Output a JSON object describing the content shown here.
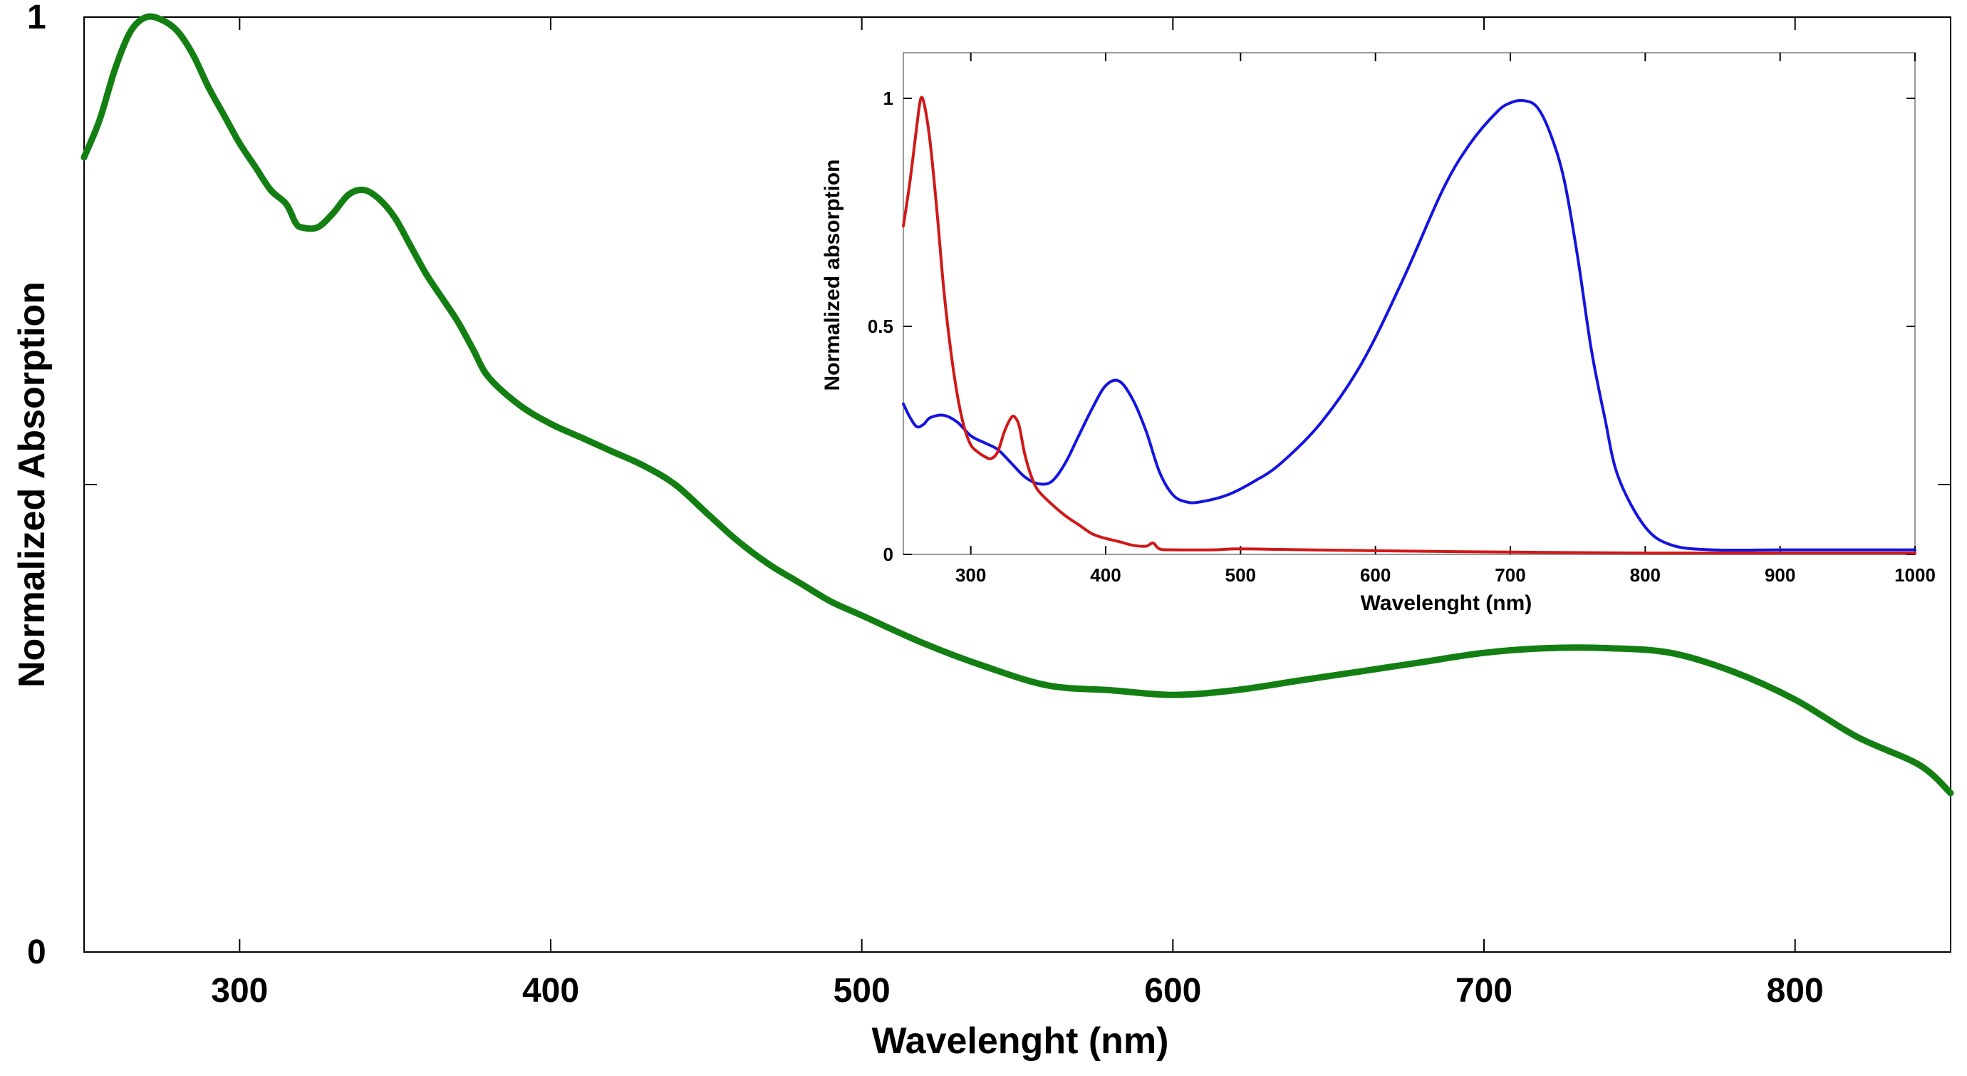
{
  "chart_data": [
    {
      "type": "line",
      "title": "",
      "xlabel": "Wavelenght (nm)",
      "ylabel": "Normalized Absorption",
      "xlim": [
        250,
        850
      ],
      "ylim": [
        0,
        1
      ],
      "xticks": [
        300,
        400,
        500,
        600,
        700,
        800
      ],
      "xtick_labels": [
        "300",
        "400",
        "500",
        "600",
        "700",
        "800"
      ],
      "yticks": [
        0,
        0.5,
        1
      ],
      "ytick_labels": [
        "0",
        "",
        "1"
      ],
      "grid": false,
      "series": [
        {
          "name": "green",
          "color": "#137f13",
          "x": [
            250,
            255,
            260,
            265,
            270,
            275,
            280,
            285,
            290,
            295,
            300,
            305,
            310,
            315,
            318,
            320,
            325,
            330,
            335,
            340,
            345,
            350,
            355,
            360,
            365,
            370,
            375,
            380,
            390,
            400,
            410,
            420,
            430,
            440,
            450,
            460,
            470,
            480,
            490,
            500,
            520,
            540,
            560,
            580,
            600,
            620,
            640,
            660,
            680,
            700,
            720,
            740,
            760,
            780,
            800,
            820,
            840,
            850
          ],
          "y": [
            0.85,
            0.89,
            0.945,
            0.985,
            1.0,
            0.997,
            0.985,
            0.96,
            0.925,
            0.895,
            0.865,
            0.84,
            0.815,
            0.8,
            0.78,
            0.775,
            0.775,
            0.79,
            0.81,
            0.815,
            0.805,
            0.785,
            0.755,
            0.725,
            0.7,
            0.675,
            0.645,
            0.615,
            0.585,
            0.565,
            0.55,
            0.535,
            0.52,
            0.5,
            0.47,
            0.44,
            0.415,
            0.395,
            0.375,
            0.36,
            0.33,
            0.305,
            0.285,
            0.28,
            0.275,
            0.28,
            0.29,
            0.3,
            0.31,
            0.32,
            0.325,
            0.325,
            0.32,
            0.3,
            0.27,
            0.23,
            0.2,
            0.17
          ]
        }
      ]
    },
    {
      "type": "line",
      "title": "",
      "xlabel": "Wavelenght (nm)",
      "ylabel": "Normalized absorption",
      "xlim": [
        250,
        1000
      ],
      "ylim": [
        0,
        1.1
      ],
      "xticks": [
        300,
        400,
        500,
        600,
        700,
        800,
        900,
        1000
      ],
      "xtick_labels": [
        "300",
        "400",
        "500",
        "600",
        "700",
        "800",
        "900",
        "1000"
      ],
      "yticks": [
        0,
        0.5,
        1
      ],
      "ytick_labels": [
        "0",
        "0.5",
        "1"
      ],
      "grid": false,
      "series": [
        {
          "name": "blue",
          "color": "#1414e0",
          "x": [
            250,
            255,
            260,
            265,
            270,
            280,
            290,
            300,
            310,
            320,
            330,
            340,
            350,
            360,
            370,
            380,
            390,
            400,
            410,
            420,
            430,
            440,
            450,
            460,
            470,
            490,
            510,
            530,
            560,
            590,
            620,
            650,
            670,
            690,
            700,
            710,
            720,
            730,
            740,
            750,
            760,
            770,
            780,
            800,
            820,
            850,
            900,
            950,
            1000
          ],
          "y": [
            0.33,
            0.3,
            0.28,
            0.285,
            0.3,
            0.305,
            0.29,
            0.26,
            0.245,
            0.23,
            0.2,
            0.17,
            0.155,
            0.16,
            0.2,
            0.26,
            0.32,
            0.37,
            0.38,
            0.34,
            0.27,
            0.18,
            0.13,
            0.115,
            0.115,
            0.13,
            0.16,
            0.2,
            0.29,
            0.42,
            0.6,
            0.8,
            0.9,
            0.97,
            0.99,
            0.995,
            0.98,
            0.92,
            0.82,
            0.65,
            0.45,
            0.3,
            0.17,
            0.06,
            0.02,
            0.01,
            0.01,
            0.01,
            0.01
          ],
          "note": ""
        },
        {
          "name": "red",
          "color": "#d01818",
          "x": [
            250,
            255,
            260,
            263,
            266,
            270,
            275,
            280,
            285,
            290,
            295,
            300,
            305,
            310,
            315,
            320,
            325,
            330,
            333,
            336,
            340,
            345,
            350,
            360,
            370,
            380,
            390,
            400,
            410,
            420,
            430,
            435,
            440,
            450,
            480,
            500,
            550,
            600,
            700,
            800,
            900,
            1000
          ],
          "y": [
            0.72,
            0.82,
            0.94,
            1.0,
            0.98,
            0.9,
            0.75,
            0.58,
            0.45,
            0.35,
            0.28,
            0.24,
            0.225,
            0.215,
            0.21,
            0.225,
            0.27,
            0.3,
            0.3,
            0.28,
            0.22,
            0.17,
            0.14,
            0.11,
            0.085,
            0.065,
            0.045,
            0.035,
            0.028,
            0.02,
            0.018,
            0.025,
            0.012,
            0.01,
            0.01,
            0.012,
            0.01,
            0.008,
            0.005,
            0.003,
            0.003,
            0.003
          ]
        }
      ]
    }
  ]
}
